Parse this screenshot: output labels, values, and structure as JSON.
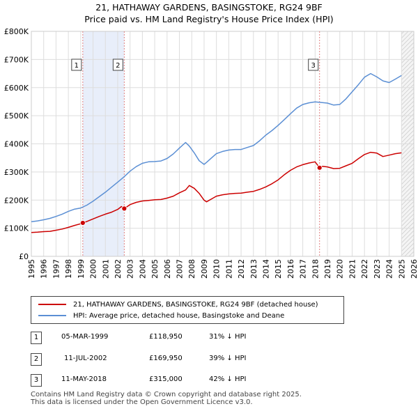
{
  "title_line1": "21, HATHAWAY GARDENS, BASINGSTOKE, RG24 9BF",
  "title_line2": "Price paid vs. HM Land Registry's House Price Index (HPI)",
  "chart_data": {
    "type": "line",
    "xlim": [
      1995,
      2026
    ],
    "ylim": [
      0,
      800000
    ],
    "y_ticks": [
      {
        "value": 0,
        "label": "£0"
      },
      {
        "value": 100000,
        "label": "£100K"
      },
      {
        "value": 200000,
        "label": "£200K"
      },
      {
        "value": 300000,
        "label": "£300K"
      },
      {
        "value": 400000,
        "label": "£400K"
      },
      {
        "value": 500000,
        "label": "£500K"
      },
      {
        "value": 600000,
        "label": "£600K"
      },
      {
        "value": 700000,
        "label": "£700K"
      },
      {
        "value": 800000,
        "label": "£800K"
      }
    ],
    "x_ticks": [
      1995,
      1996,
      1997,
      1998,
      1999,
      2000,
      2001,
      2002,
      2003,
      2004,
      2005,
      2006,
      2007,
      2008,
      2009,
      2010,
      2011,
      2012,
      2013,
      2014,
      2015,
      2016,
      2017,
      2018,
      2019,
      2020,
      2021,
      2022,
      2023,
      2024,
      2025,
      2026
    ],
    "grid": true,
    "highlight_bands": [
      [
        1999.17,
        2002.53
      ]
    ],
    "forecast_start": 2025.0,
    "series": [
      {
        "name": "21, HATHAWAY GARDENS, BASINGSTOKE, RG24 9BF (detached house)",
        "color": "#cc0000",
        "x": [
          1995.0,
          1995.5,
          1996.0,
          1996.5,
          1997.0,
          1997.5,
          1998.0,
          1998.5,
          1999.0,
          1999.17,
          1999.5,
          2000.0,
          2000.5,
          2001.0,
          2001.5,
          2002.0,
          2002.3,
          2002.53,
          2003.0,
          2003.5,
          2004.0,
          2004.5,
          2005.0,
          2005.5,
          2006.0,
          2006.5,
          2007.0,
          2007.5,
          2007.8,
          2008.2,
          2008.6,
          2009.0,
          2009.2,
          2009.6,
          2010.0,
          2010.5,
          2011.0,
          2011.5,
          2012.0,
          2012.5,
          2013.0,
          2013.5,
          2014.0,
          2014.5,
          2015.0,
          2015.5,
          2016.0,
          2016.5,
          2017.0,
          2017.5,
          2018.0,
          2018.36,
          2018.6,
          2019.0,
          2019.5,
          2020.0,
          2020.5,
          2021.0,
          2021.5,
          2022.0,
          2022.5,
          2023.0,
          2023.5,
          2024.0,
          2024.5,
          2025.0
        ],
        "values": [
          85000,
          86000,
          88000,
          89000,
          93000,
          97000,
          103000,
          110000,
          116000,
          118950,
          124000,
          133000,
          142000,
          150000,
          157000,
          167000,
          177000,
          169950,
          184000,
          192000,
          197000,
          199000,
          201000,
          202000,
          207000,
          214000,
          226000,
          236000,
          252000,
          242000,
          224000,
          200000,
          194000,
          204000,
          214000,
          219000,
          222000,
          224000,
          225000,
          228000,
          231000,
          238000,
          247000,
          258000,
          272000,
          290000,
          306000,
          318000,
          326000,
          332000,
          336000,
          315000,
          320000,
          318000,
          312000,
          313000,
          322000,
          331000,
          347000,
          362000,
          370000,
          367000,
          355000,
          360000,
          365000,
          368000
        ]
      },
      {
        "name": "HPI: Average price, detached house, Basingstoke and Deane",
        "color": "#5b8fd4",
        "x": [
          1995.0,
          1995.5,
          1996.0,
          1996.5,
          1997.0,
          1997.5,
          1998.0,
          1998.5,
          1999.0,
          1999.5,
          2000.0,
          2000.5,
          2001.0,
          2001.5,
          2002.0,
          2002.5,
          2003.0,
          2003.5,
          2004.0,
          2004.5,
          2005.0,
          2005.5,
          2006.0,
          2006.5,
          2007.0,
          2007.5,
          2007.8,
          2008.2,
          2008.6,
          2009.0,
          2009.2,
          2009.6,
          2010.0,
          2010.5,
          2011.0,
          2011.5,
          2012.0,
          2012.5,
          2013.0,
          2013.5,
          2014.0,
          2014.5,
          2015.0,
          2015.5,
          2016.0,
          2016.5,
          2017.0,
          2017.5,
          2018.0,
          2018.5,
          2019.0,
          2019.5,
          2020.0,
          2020.5,
          2021.0,
          2021.5,
          2022.0,
          2022.5,
          2023.0,
          2023.5,
          2024.0,
          2024.5,
          2025.0
        ],
        "values": [
          123000,
          126000,
          130000,
          135000,
          142000,
          150000,
          160000,
          168000,
          172000,
          182000,
          196000,
          212000,
          228000,
          246000,
          264000,
          282000,
          303000,
          319000,
          331000,
          336000,
          337000,
          339000,
          348000,
          364000,
          385000,
          405000,
          392000,
          368000,
          340000,
          327000,
          334000,
          350000,
          365000,
          373000,
          378000,
          380000,
          380000,
          387000,
          394000,
          411000,
          431000,
          447000,
          466000,
          486000,
          507000,
          527000,
          540000,
          546000,
          549000,
          547000,
          545000,
          538000,
          540000,
          560000,
          585000,
          610000,
          637000,
          650000,
          638000,
          624000,
          618000,
          630000,
          643000
        ]
      }
    ],
    "sale_points": [
      {
        "label": "1",
        "x": 1999.17,
        "value": 118950
      },
      {
        "label": "2",
        "x": 2002.53,
        "value": 169950
      },
      {
        "label": "3",
        "x": 2018.36,
        "value": 315000
      }
    ]
  },
  "legend": {
    "items": [
      {
        "label": "21, HATHAWAY GARDENS, BASINGSTOKE, RG24 9BF (detached house)",
        "color": "#cc0000"
      },
      {
        "label": "HPI: Average price, detached house, Basingstoke and Deane",
        "color": "#5b8fd4"
      }
    ]
  },
  "sales": [
    {
      "num": "1",
      "date": "05-MAR-1999",
      "price": "£118,950",
      "diff": "31% ↓ HPI"
    },
    {
      "num": "2",
      "date": "11-JUL-2002",
      "price": "£169,950",
      "diff": "39% ↓ HPI"
    },
    {
      "num": "3",
      "date": "11-MAY-2018",
      "price": "£315,000",
      "diff": "42% ↓ HPI"
    }
  ],
  "footer": {
    "line1": "Contains HM Land Registry data © Crown copyright and database right 2025.",
    "line2": "This data is licensed under the Open Government Licence v3.0."
  }
}
